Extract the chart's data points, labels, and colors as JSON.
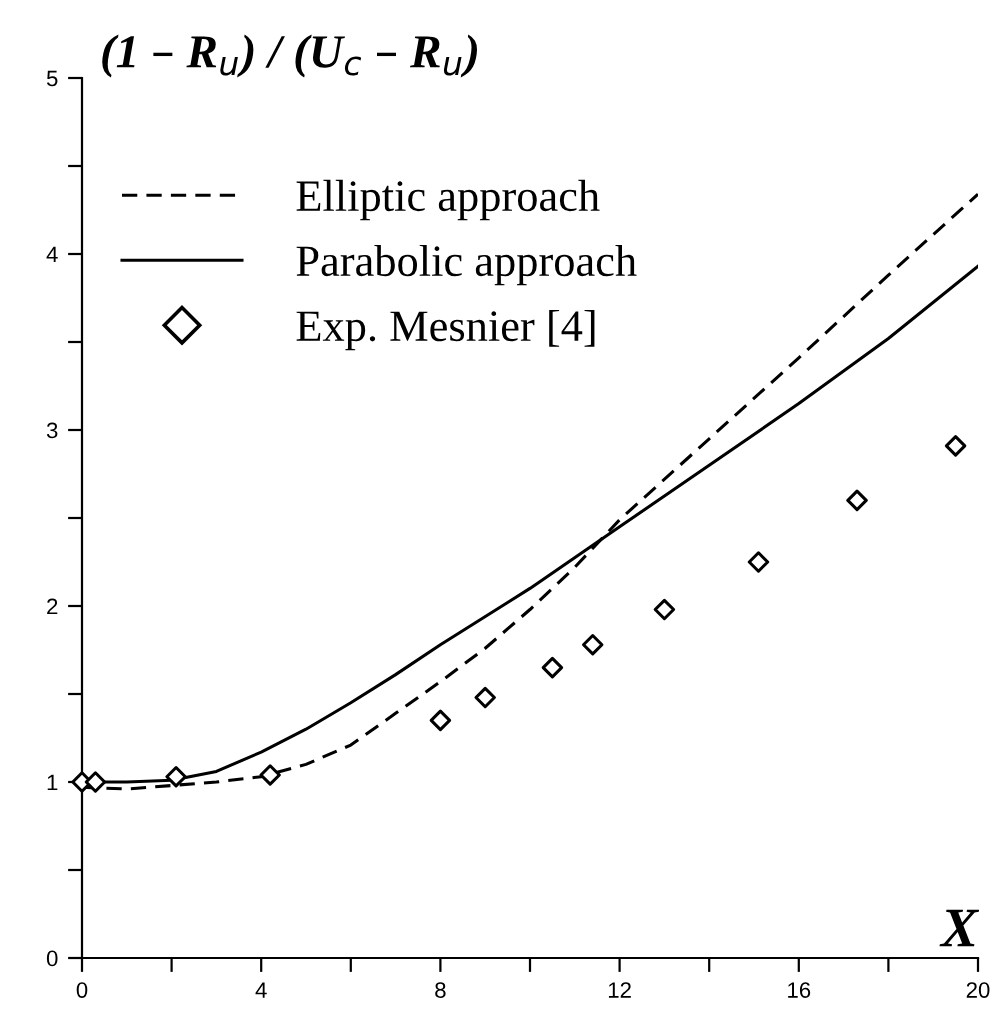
{
  "chart_data": {
    "type": "line",
    "ylabel": "(1 – R$_{u}$) / (U$_{c}$ – R$_{u}$)",
    "xlabel": "X",
    "xlim": [
      0,
      20
    ],
    "ylim": [
      0,
      5
    ],
    "xticks": [
      0,
      {
        "value": 2,
        "label": null
      },
      4,
      {
        "value": 6,
        "label": null
      },
      8,
      {
        "value": 10,
        "label": null
      },
      12,
      {
        "value": 14,
        "label": null
      },
      16,
      {
        "value": 18,
        "label": null
      },
      20
    ],
    "yticks": [
      0,
      {
        "value": 0.5,
        "label": null
      },
      1,
      {
        "value": 1.5,
        "label": null
      },
      2,
      {
        "value": 2.5,
        "label": null
      },
      3,
      {
        "value": 3.5,
        "label": null
      },
      4,
      {
        "value": 4.5,
        "label": null
      },
      5
    ],
    "grid": false,
    "legend": "top left",
    "series": [
      {
        "name": "Elliptic approach",
        "line_style": "dashed",
        "color": "#000000",
        "x": [
          0,
          1,
          2,
          3,
          4,
          5,
          6,
          7,
          8,
          9,
          10,
          11,
          12,
          14,
          16,
          18,
          20
        ],
        "values": [
          0.97,
          0.96,
          0.98,
          1.0,
          1.03,
          1.1,
          1.21,
          1.39,
          1.57,
          1.76,
          1.98,
          2.22,
          2.49,
          2.95,
          3.41,
          3.88,
          4.34
        ]
      },
      {
        "name": "Parabolic approach",
        "line_style": "solid",
        "color": "#000000",
        "x": [
          0,
          1,
          2,
          3,
          4,
          5,
          6,
          7,
          8,
          10,
          12,
          14,
          16,
          18,
          20
        ],
        "values": [
          1.0,
          1.0,
          1.01,
          1.06,
          1.17,
          1.3,
          1.45,
          1.61,
          1.78,
          2.1,
          2.45,
          2.8,
          3.15,
          3.52,
          3.93
        ]
      },
      {
        "name": "Exp. Mesnier [4]",
        "type": "scatter",
        "marker": "diamond",
        "color": "#000000",
        "x": [
          0,
          0.3,
          2.1,
          4.2,
          8.0,
          9.0,
          10.5,
          11.4,
          13.0,
          15.1,
          17.3,
          19.5
        ],
        "values": [
          1.0,
          1.0,
          1.03,
          1.04,
          1.35,
          1.48,
          1.65,
          1.78,
          1.98,
          2.25,
          2.6,
          2.91
        ]
      }
    ]
  }
}
